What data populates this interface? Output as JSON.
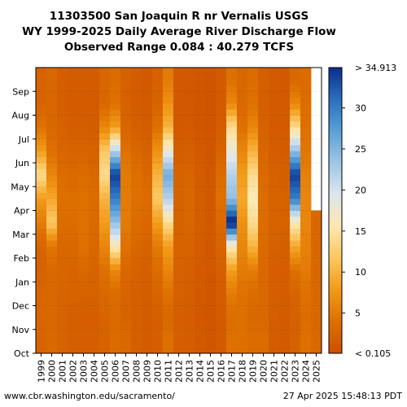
{
  "chart_data": {
    "type": "heatmap",
    "title_lines": [
      "11303500 San Joaquin R nr Vernalis USGS",
      "WY 1999-2025 Daily Average River Discharge Flow",
      "Observed Range 0.084 : 40.279 TCFS"
    ],
    "x_categories": [
      "1999",
      "2000",
      "2001",
      "2002",
      "2003",
      "2004",
      "2005",
      "2006",
      "2007",
      "2008",
      "2009",
      "2010",
      "2011",
      "2012",
      "2013",
      "2014",
      "2015",
      "2016",
      "2017",
      "2018",
      "2019",
      "2020",
      "2021",
      "2022",
      "2023",
      "2024",
      "2025"
    ],
    "y_categories": [
      "Oct",
      "Nov",
      "Dec",
      "Jan",
      "Feb",
      "Mar",
      "Apr",
      "May",
      "Jun",
      "Jul",
      "Aug",
      "Sep"
    ],
    "colorbar": {
      "ticks": [
        5,
        10,
        15,
        20,
        25,
        30
      ],
      "top_label": "> 34.913",
      "bottom_label": "< 0.105",
      "range": [
        0.105,
        34.913
      ],
      "colors": [
        "#cc4f00",
        "#de7000",
        "#f29a18",
        "#fcc660",
        "#fde8b0",
        "#dce6ee",
        "#9fc6e6",
        "#5aa0d6",
        "#2a6fbd",
        "#0a2e8a"
      ]
    },
    "values_tcfs": [
      [
        2.5,
        2.8,
        2.8,
        2.2,
        2.6,
        5,
        8,
        14,
        8,
        4,
        2.5,
        2.3
      ],
      [
        3,
        3,
        3,
        3,
        4.5,
        12,
        9,
        6,
        4,
        3,
        2.8,
        3
      ],
      [
        2.5,
        2.4,
        2.5,
        2.8,
        3,
        3.5,
        4,
        3.5,
        2.8,
        2.2,
        1.8,
        2
      ],
      [
        2,
        2,
        2.2,
        2.5,
        3,
        3.5,
        3.8,
        3.2,
        2.5,
        1.8,
        1.5,
        1.6
      ],
      [
        2,
        2,
        2.2,
        3,
        4,
        4,
        4,
        3.5,
        2.5,
        1.8,
        1.5,
        1.6
      ],
      [
        2,
        2,
        2.2,
        2.5,
        3,
        3.2,
        3.5,
        3,
        2.2,
        1.6,
        1.5,
        1.6
      ],
      [
        2.5,
        2.5,
        3,
        4,
        6,
        8,
        10,
        14,
        12,
        6,
        3,
        2.8
      ],
      [
        3.5,
        3.2,
        3.5,
        6,
        16,
        24,
        30,
        34,
        22,
        8,
        4,
        3.5
      ],
      [
        3,
        2.5,
        2.5,
        3,
        4,
        5,
        5,
        5,
        4,
        2.8,
        2.2,
        2.2
      ],
      [
        2,
        2,
        2,
        2.2,
        3,
        3.5,
        4,
        3.8,
        3,
        2,
        1.6,
        1.7
      ],
      [
        1.6,
        1.6,
        1.7,
        2,
        2.5,
        3,
        3.5,
        3,
        2.4,
        1.6,
        1.3,
        1.3
      ],
      [
        2,
        2,
        2.5,
        3.5,
        5,
        8,
        12,
        10,
        7,
        4,
        2.5,
        2.2
      ],
      [
        4,
        3,
        4,
        6,
        8,
        14,
        22,
        26,
        18,
        10,
        7,
        5
      ],
      [
        2,
        2,
        2.2,
        2.2,
        2.5,
        2.5,
        2.5,
        2.4,
        1.8,
        1.3,
        1.2,
        1.3
      ],
      [
        1.8,
        1.7,
        1.8,
        2,
        2.5,
        2.8,
        3,
        2.6,
        2,
        1.4,
        1.2,
        1.2
      ],
      [
        1.3,
        1.2,
        1.3,
        1.4,
        1.6,
        1.7,
        1.7,
        1.6,
        1.3,
        1,
        0.9,
        0.9
      ],
      [
        1,
        1,
        1,
        1.1,
        1.2,
        1.3,
        1.3,
        1.2,
        1,
        0.8,
        0.7,
        0.8
      ],
      [
        1.5,
        1.5,
        1.7,
        2,
        2.5,
        3,
        4,
        3.5,
        2.5,
        1.8,
        1.5,
        1.5
      ],
      [
        4,
        3.5,
        5,
        8,
        16,
        36,
        24,
        22,
        18,
        14,
        6,
        4
      ],
      [
        4,
        4,
        4,
        5,
        6,
        7,
        9,
        8,
        6,
        4,
        3,
        3
      ],
      [
        3.5,
        3,
        3.5,
        5,
        10,
        14,
        16,
        14,
        10,
        6,
        4,
        3.5
      ],
      [
        3.5,
        3,
        3,
        3,
        3.2,
        3.5,
        3.5,
        3.2,
        2.8,
        2.2,
        2,
        2
      ],
      [
        1.8,
        1.8,
        2,
        2,
        2.2,
        2.5,
        2.5,
        2.3,
        1.8,
        1.5,
        1.4,
        1.4
      ],
      [
        1.5,
        1.5,
        1.7,
        1.8,
        2,
        2.2,
        2.2,
        2,
        1.7,
        1.4,
        1.3,
        1.3
      ],
      [
        2.2,
        2.2,
        2.5,
        4,
        9,
        16,
        30,
        34,
        24,
        14,
        6,
        3
      ],
      [
        4,
        3.5,
        4,
        5,
        5.5,
        6,
        6,
        5.5,
        4.5,
        4,
        3.5,
        3.5
      ],
      [
        3,
        3,
        3,
        3,
        3,
        3,
        null,
        null,
        null,
        null,
        null,
        null
      ]
    ]
  },
  "footer": {
    "left": "www.cbr.washington.edu/sacramento/",
    "right": "27 Apr 2025 15:48:13 PDT"
  }
}
